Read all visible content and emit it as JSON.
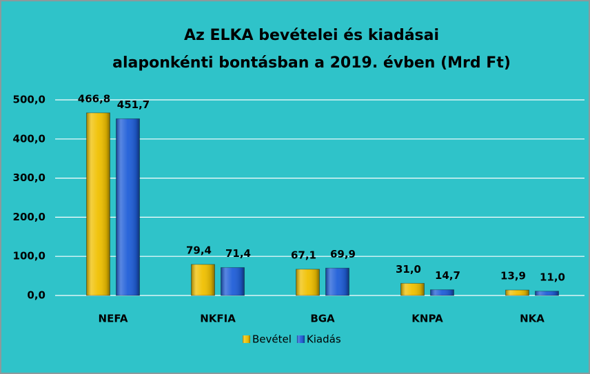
{
  "chart_data": {
    "type": "bar",
    "title": [
      "Az ELKA bevételei és kiadásai",
      "alaponkénti bontásban a 2019. évben (Mrd Ft)"
    ],
    "categories": [
      "NEFA",
      "NKFIA",
      "BGA",
      "KNPA",
      "NKA"
    ],
    "series": [
      {
        "name": "Bevétel",
        "color": "#f0c000",
        "values": [
          466.8,
          79.4,
          67.1,
          31.0,
          13.9
        ],
        "value_labels": [
          "466,8",
          "79,4",
          "67,1",
          "31,0",
          "13,9"
        ]
      },
      {
        "name": "Kiadás",
        "color": "#1f5ed8",
        "values": [
          451.7,
          71.4,
          69.9,
          14.7,
          11.0
        ],
        "value_labels": [
          "451,7",
          "71,4",
          "69,9",
          "14,7",
          "11,0"
        ]
      }
    ],
    "ylim": [
      0,
      500
    ],
    "yticks": [
      {
        "value": 0,
        "label": "0,0"
      },
      {
        "value": 100,
        "label": "100,0"
      },
      {
        "value": 200,
        "label": "200,0"
      },
      {
        "value": 300,
        "label": "300,0"
      },
      {
        "value": 400,
        "label": "400,0"
      },
      {
        "value": 500,
        "label": "500,0"
      }
    ],
    "grid": true,
    "legend": "bottom"
  }
}
